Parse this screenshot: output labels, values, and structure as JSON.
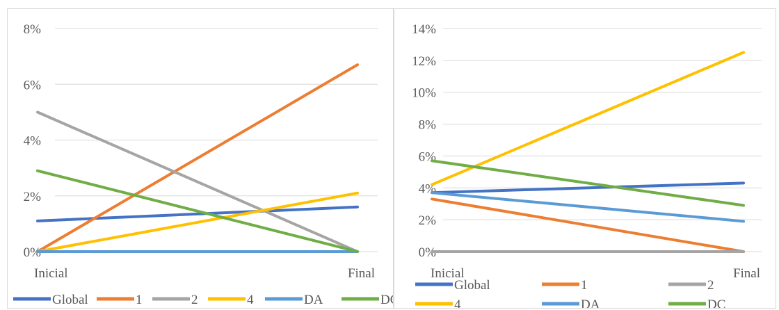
{
  "chart_data": [
    {
      "type": "line",
      "categories": [
        "Inicial",
        "Final"
      ],
      "ylim": [
        0,
        8
      ],
      "yticks": [
        "0%",
        "2%",
        "4%",
        "6%",
        "8%"
      ],
      "series": [
        {
          "name": "Global",
          "values": [
            1.1,
            1.6
          ],
          "color": "#4472C4"
        },
        {
          "name": "1",
          "values": [
            0.0,
            6.7
          ],
          "color": "#ED7D31"
        },
        {
          "name": "2",
          "values": [
            5.0,
            0.0
          ],
          "color": "#A5A5A5"
        },
        {
          "name": "4",
          "values": [
            0.0,
            2.1
          ],
          "color": "#FFC000"
        },
        {
          "name": "DA",
          "values": [
            0.0,
            0.0
          ],
          "color": "#5B9BD5"
        },
        {
          "name": "DC",
          "values": [
            2.9,
            0.0
          ],
          "color": "#70AD47"
        }
      ],
      "legend": "bottom",
      "grid": true
    },
    {
      "type": "line",
      "categories": [
        "Inicial",
        "Final"
      ],
      "ylim": [
        0,
        14
      ],
      "yticks": [
        "0%",
        "2%",
        "4%",
        "6%",
        "8%",
        "10%",
        "12%",
        "14%"
      ],
      "series": [
        {
          "name": "Global",
          "values": [
            3.7,
            4.3
          ],
          "color": "#4472C4"
        },
        {
          "name": "1",
          "values": [
            3.3,
            0.0
          ],
          "color": "#ED7D31"
        },
        {
          "name": "2",
          "values": [
            0.0,
            0.0
          ],
          "color": "#A5A5A5"
        },
        {
          "name": "4",
          "values": [
            4.2,
            12.5
          ],
          "color": "#FFC000"
        },
        {
          "name": "DA",
          "values": [
            3.7,
            1.9
          ],
          "color": "#5B9BD5"
        },
        {
          "name": "DC",
          "values": [
            5.7,
            2.9
          ],
          "color": "#70AD47"
        }
      ],
      "legend": "bottom",
      "grid": true
    }
  ]
}
